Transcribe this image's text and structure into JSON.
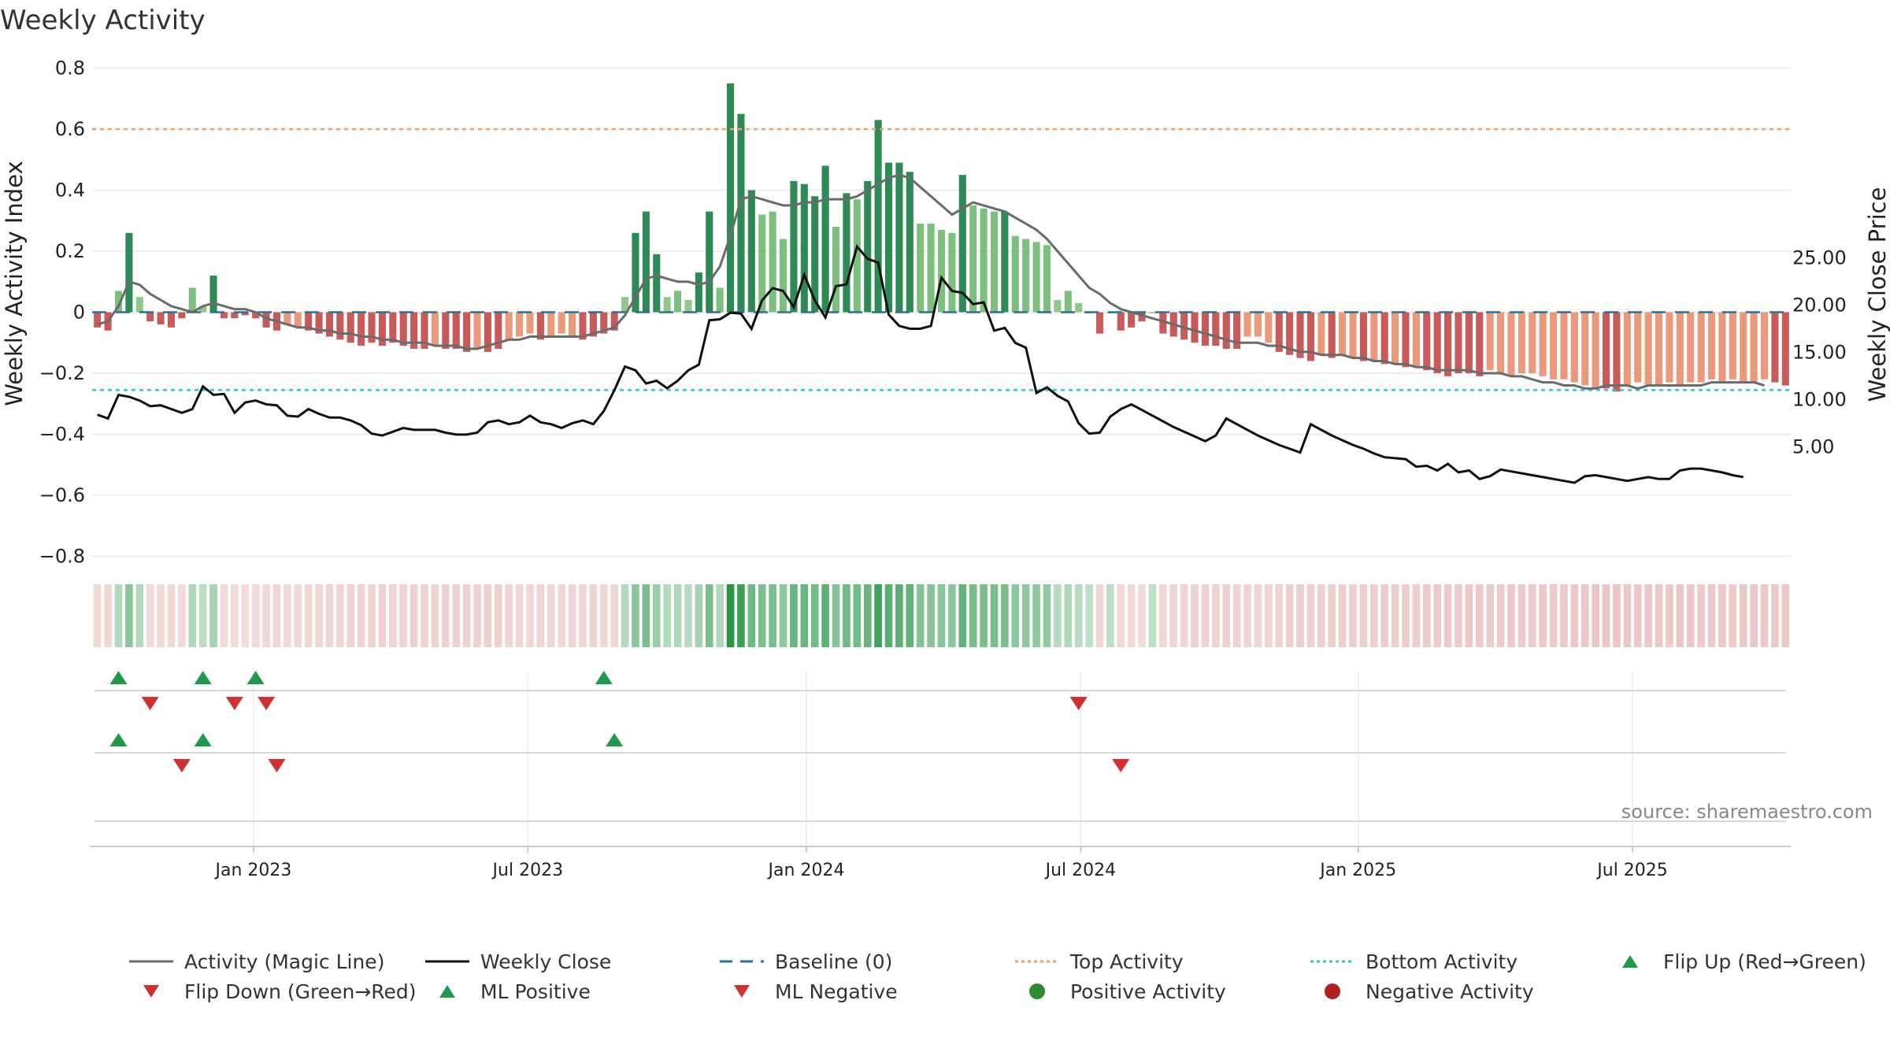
{
  "title": "Weekly Activity",
  "source": "source: sharemaestro.com",
  "colors": {
    "magic_line": "#6b6b6b",
    "close": "#111111",
    "baseline": "#2a6f9b",
    "top": "#f0a060",
    "bottom": "#2ec4cc",
    "up": "#1e9a4a",
    "down": "#d03030",
    "pos_dot": "#2e8b2e",
    "neg_dot": "#b02020"
  },
  "legend": [
    {
      "key": "magic",
      "label": "Activity (Magic Line)"
    },
    {
      "key": "close",
      "label": "Weekly Close"
    },
    {
      "key": "baseline",
      "label": "Baseline (0)"
    },
    {
      "key": "top",
      "label": "Top Activity"
    },
    {
      "key": "bottom",
      "label": "Bottom Activity"
    },
    {
      "key": "flipup",
      "label": "Flip Up (Red→Green)"
    },
    {
      "key": "flipdown",
      "label": "Flip Down (Green→Red)"
    },
    {
      "key": "mlpos",
      "label": "ML Positive"
    },
    {
      "key": "mlneg",
      "label": "ML Negative"
    },
    {
      "key": "posact",
      "label": "Positive Activity"
    },
    {
      "key": "negact",
      "label": "Negative Activity"
    }
  ],
  "chart_data": {
    "type": "bar",
    "title": "Weekly Activity",
    "ylabel": "Weekly Activity Index",
    "y2label": "Weekly Close Price",
    "ylim": [
      -0.88,
      0.8
    ],
    "y2lim": [
      0.0,
      27.5
    ],
    "yticks": [
      "0.8",
      "0.6",
      "0.4",
      "0.2",
      "0",
      "−0.2",
      "−0.4",
      "−0.6",
      "−0.8"
    ],
    "ytick_values": [
      0.8,
      0.6,
      0.4,
      0.2,
      0,
      -0.2,
      -0.4,
      -0.6,
      -0.8
    ],
    "y2ticks": [
      "25.00",
      "20.00",
      "15.00",
      "10.00",
      "5.00"
    ],
    "y2tick_values": [
      25,
      20,
      15,
      10,
      5
    ],
    "xticks": [
      "Jan 2023",
      "Jul 2023",
      "Jan 2024",
      "Jul 2024",
      "Jan 2025",
      "Jul 2025"
    ],
    "xtick_weeks": [
      15.3,
      41.3,
      67.7,
      93.7,
      120.0,
      146.0
    ],
    "top_activity": 0.6,
    "bottom_activity": -0.255,
    "activity": [
      -0.05,
      -0.06,
      0.07,
      0.26,
      0.05,
      -0.03,
      -0.04,
      -0.05,
      -0.02,
      0.08,
      0.02,
      0.12,
      -0.02,
      -0.02,
      -0.01,
      -0.02,
      -0.05,
      -0.06,
      -0.04,
      -0.05,
      -0.06,
      -0.07,
      -0.08,
      -0.09,
      -0.1,
      -0.11,
      -0.1,
      -0.11,
      -0.1,
      -0.11,
      -0.12,
      -0.12,
      -0.11,
      -0.12,
      -0.12,
      -0.13,
      -0.12,
      -0.13,
      -0.12,
      -0.09,
      -0.08,
      -0.07,
      -0.09,
      -0.08,
      -0.07,
      -0.08,
      -0.09,
      -0.08,
      -0.07,
      -0.06,
      0.05,
      0.26,
      0.33,
      0.19,
      0.05,
      0.07,
      0.04,
      0.13,
      0.33,
      0.08,
      0.75,
      0.65,
      0.4,
      0.32,
      0.33,
      0.24,
      0.43,
      0.42,
      0.38,
      0.48,
      0.28,
      0.39,
      0.37,
      0.43,
      0.63,
      0.49,
      0.49,
      0.46,
      0.29,
      0.29,
      0.27,
      0.26,
      0.45,
      0.35,
      0.34,
      0.33,
      0.33,
      0.25,
      0.24,
      0.23,
      0.22,
      0.04,
      0.07,
      0.03,
      0.0,
      -0.07,
      0.0,
      -0.06,
      -0.05,
      -0.03,
      0.0,
      -0.07,
      -0.08,
      -0.09,
      -0.1,
      -0.11,
      -0.11,
      -0.12,
      -0.12,
      -0.08,
      -0.08,
      -0.1,
      -0.13,
      -0.14,
      -0.15,
      -0.16,
      -0.14,
      -0.15,
      -0.14,
      -0.15,
      -0.16,
      -0.16,
      -0.17,
      -0.17,
      -0.18,
      -0.18,
      -0.19,
      -0.2,
      -0.21,
      -0.2,
      -0.2,
      -0.21,
      -0.19,
      -0.2,
      -0.21,
      -0.2,
      -0.2,
      -0.21,
      -0.22,
      -0.22,
      -0.23,
      -0.24,
      -0.25,
      -0.25,
      -0.26,
      -0.24,
      -0.23,
      -0.24,
      -0.24,
      -0.23,
      -0.24,
      -0.23,
      -0.23,
      -0.22,
      -0.23,
      -0.22,
      -0.23,
      -0.23,
      -0.22,
      -0.23,
      -0.24
    ],
    "magic_line": [
      -0.04,
      -0.03,
      0.02,
      0.1,
      0.09,
      0.06,
      0.04,
      0.02,
      0.01,
      0.0,
      0.02,
      0.03,
      0.02,
      0.01,
      0.01,
      0.0,
      -0.02,
      -0.03,
      -0.04,
      -0.05,
      -0.05,
      -0.06,
      -0.06,
      -0.07,
      -0.07,
      -0.08,
      -0.08,
      -0.09,
      -0.09,
      -0.1,
      -0.1,
      -0.1,
      -0.11,
      -0.11,
      -0.11,
      -0.12,
      -0.12,
      -0.11,
      -0.1,
      -0.09,
      -0.09,
      -0.08,
      -0.08,
      -0.08,
      -0.08,
      -0.08,
      -0.08,
      -0.07,
      -0.06,
      -0.05,
      -0.01,
      0.05,
      0.11,
      0.12,
      0.11,
      0.1,
      0.1,
      0.09,
      0.1,
      0.15,
      0.25,
      0.37,
      0.38,
      0.37,
      0.36,
      0.35,
      0.35,
      0.36,
      0.36,
      0.37,
      0.37,
      0.37,
      0.38,
      0.4,
      0.42,
      0.44,
      0.45,
      0.44,
      0.41,
      0.38,
      0.35,
      0.32,
      0.34,
      0.36,
      0.35,
      0.34,
      0.33,
      0.31,
      0.29,
      0.27,
      0.24,
      0.2,
      0.16,
      0.12,
      0.08,
      0.06,
      0.03,
      0.01,
      0.0,
      -0.01,
      -0.02,
      -0.03,
      -0.04,
      -0.05,
      -0.06,
      -0.07,
      -0.08,
      -0.09,
      -0.1,
      -0.1,
      -0.1,
      -0.11,
      -0.11,
      -0.12,
      -0.13,
      -0.13,
      -0.14,
      -0.14,
      -0.14,
      -0.15,
      -0.15,
      -0.16,
      -0.16,
      -0.17,
      -0.17,
      -0.18,
      -0.18,
      -0.19,
      -0.19,
      -0.19,
      -0.19,
      -0.2,
      -0.2,
      -0.2,
      -0.21,
      -0.21,
      -0.22,
      -0.23,
      -0.23,
      -0.24,
      -0.24,
      -0.25,
      -0.25,
      -0.24,
      -0.24,
      -0.24,
      -0.25,
      -0.24,
      -0.24,
      -0.24,
      -0.24,
      -0.24,
      -0.24,
      -0.23,
      -0.23,
      -0.23,
      -0.23,
      -0.23,
      -0.24
    ],
    "weekly_close": [
      8.4,
      8.0,
      10.5,
      10.3,
      9.9,
      9.3,
      9.4,
      9.0,
      8.6,
      9.0,
      11.4,
      10.5,
      10.6,
      8.6,
      9.7,
      9.9,
      9.5,
      9.4,
      8.3,
      8.2,
      9.0,
      8.5,
      8.1,
      8.1,
      7.8,
      7.3,
      6.4,
      6.2,
      6.6,
      7.0,
      6.8,
      6.8,
      6.8,
      6.5,
      6.3,
      6.3,
      6.5,
      7.6,
      7.8,
      7.4,
      7.6,
      8.3,
      7.6,
      7.4,
      7.0,
      7.5,
      7.8,
      7.4,
      8.8,
      11.0,
      13.5,
      13.1,
      11.7,
      12.0,
      11.2,
      12.0,
      13.1,
      13.7,
      18.4,
      18.5,
      19.2,
      19.1,
      17.5,
      20.5,
      21.8,
      21.5,
      19.8,
      23.2,
      20.5,
      18.7,
      22.0,
      22.2,
      26.2,
      24.9,
      24.5,
      19.0,
      17.8,
      17.5,
      17.5,
      17.8,
      22.9,
      21.5,
      21.3,
      20.1,
      20.3,
      17.3,
      17.6,
      16.0,
      15.5,
      10.7,
      11.3,
      10.4,
      9.8,
      7.5,
      6.4,
      6.5,
      8.2,
      9.0,
      9.5,
      8.9,
      8.3,
      7.7,
      7.1,
      6.6,
      6.1,
      5.6,
      6.2,
      8.0,
      7.4,
      6.8,
      6.2,
      5.7,
      5.2,
      4.8,
      4.4,
      7.4,
      6.8,
      6.2,
      5.7,
      5.2,
      4.8,
      4.3,
      3.9,
      3.8,
      3.7,
      2.9,
      3.0,
      2.5,
      3.2,
      2.3,
      2.5,
      1.6,
      1.9,
      2.6,
      2.4,
      2.2,
      2.0,
      1.8,
      1.6,
      1.4,
      1.2,
      1.9,
      2.0,
      1.8,
      1.6,
      1.4,
      1.6,
      1.8,
      1.6,
      1.6,
      2.5,
      2.7,
      2.7,
      2.5,
      2.3,
      2.0,
      1.8
    ],
    "flip_up_weeks": [
      2,
      10,
      15,
      48
    ],
    "flip_down_weeks": [
      5,
      13,
      16,
      93
    ],
    "ml_positive_weeks": [
      2,
      10,
      49
    ],
    "ml_negative_weeks": [
      8,
      17,
      97
    ]
  }
}
